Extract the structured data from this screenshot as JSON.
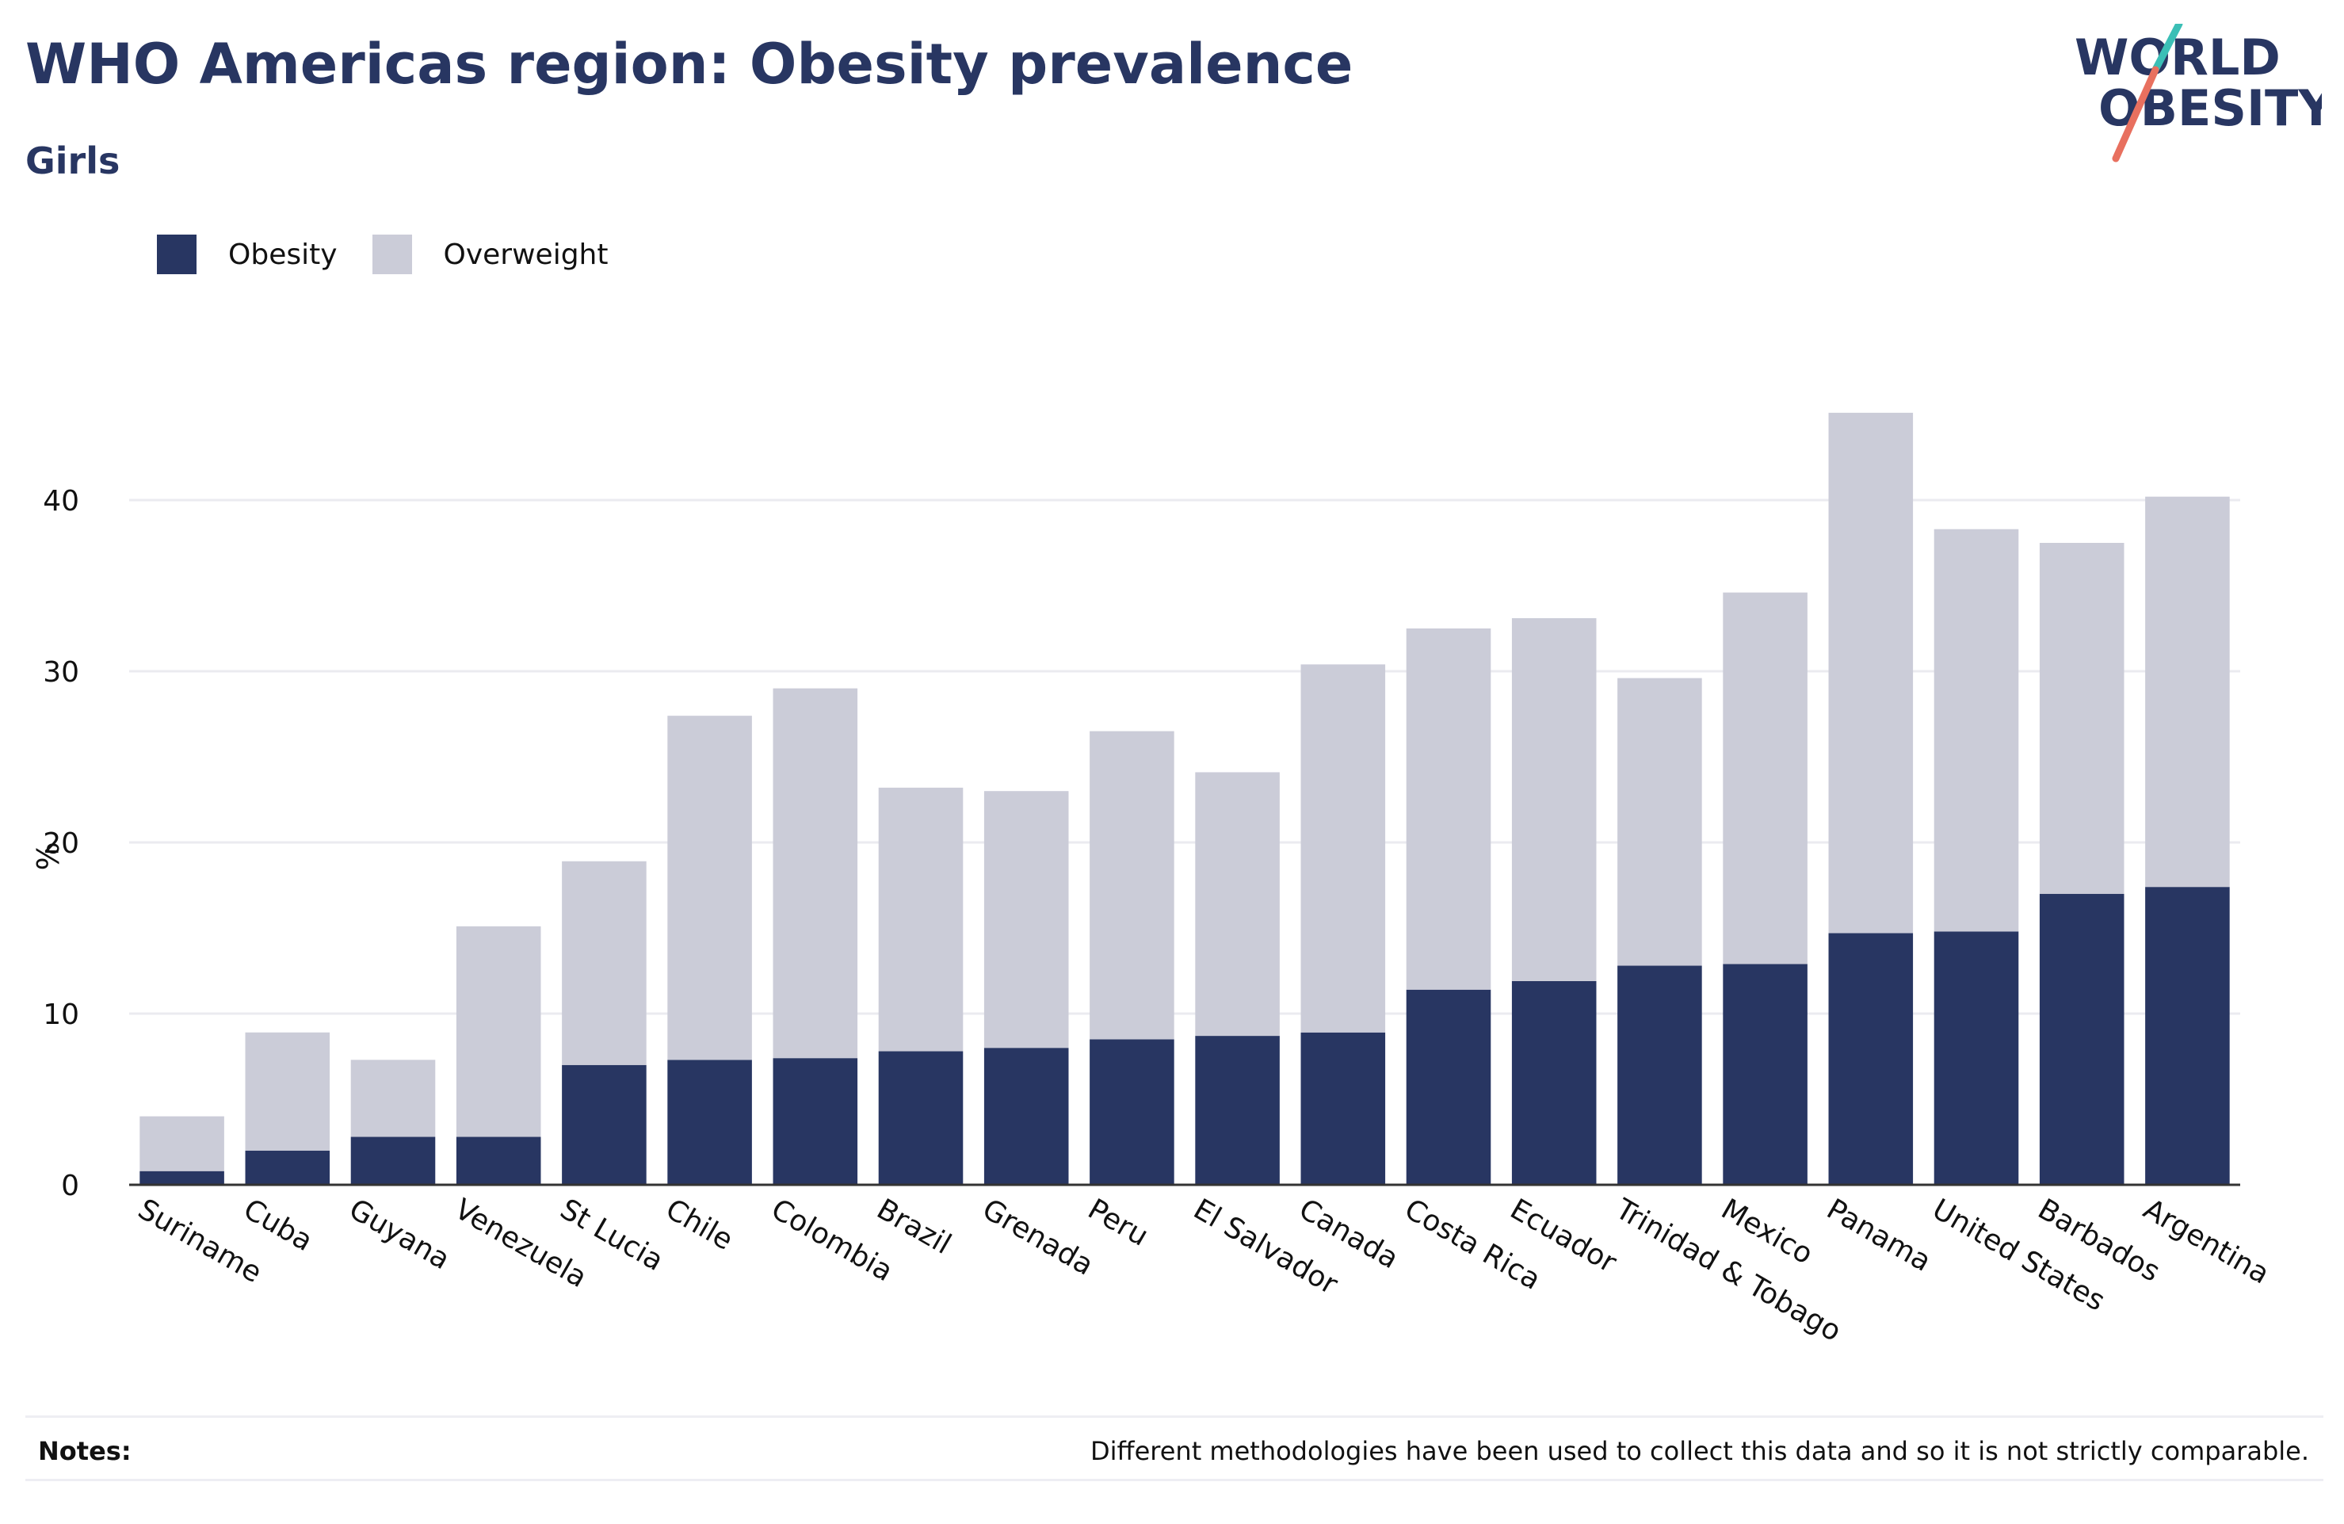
{
  "header": {
    "title": "WHO Americas region: Obesity prevalence",
    "subtitle": "Girls"
  },
  "logo": {
    "line1": "WORLD",
    "line2": "OBESITY",
    "accent_teal": "#3bbfb6",
    "accent_coral": "#e8705f",
    "text_color": "#283662"
  },
  "legend": {
    "position": "top-left",
    "items": [
      {
        "label": "Obesity",
        "color": "#283662"
      },
      {
        "label": "Overweight",
        "color": "#cbccd8"
      }
    ]
  },
  "notes": {
    "label": "Notes:",
    "text": "Different methodologies have been used to collect this data and so it is not strictly comparable."
  },
  "chart_data": {
    "type": "bar",
    "stacked": true,
    "ylabel": "%",
    "xlabel": "",
    "ylim": [
      0,
      48
    ],
    "yticks": [
      0,
      10,
      20,
      30,
      40
    ],
    "grid": true,
    "categories": [
      "Suriname",
      "Cuba",
      "Guyana",
      "Venezuela",
      "St Lucia",
      "Chile",
      "Colombia",
      "Brazil",
      "Grenada",
      "Peru",
      "El Salvador",
      "Canada",
      "Costa Rica",
      "Ecuador",
      "Trinidad & Tobago",
      "Mexico",
      "Panama",
      "United States",
      "Barbados",
      "Argentina"
    ],
    "series": [
      {
        "name": "Obesity",
        "color": "#283662",
        "values": [
          0.8,
          2.0,
          2.8,
          2.8,
          7.0,
          7.3,
          7.4,
          7.8,
          8.0,
          8.5,
          8.7,
          8.9,
          11.4,
          11.9,
          12.8,
          12.9,
          14.7,
          14.8,
          17.0,
          17.4
        ]
      },
      {
        "name": "Overweight",
        "color": "#cbccd8",
        "values": [
          3.2,
          6.9,
          4.5,
          12.3,
          11.9,
          20.1,
          21.6,
          15.4,
          15.0,
          18.0,
          15.4,
          21.5,
          21.1,
          21.2,
          16.8,
          21.7,
          30.4,
          23.5,
          20.5,
          22.8
        ]
      }
    ]
  }
}
